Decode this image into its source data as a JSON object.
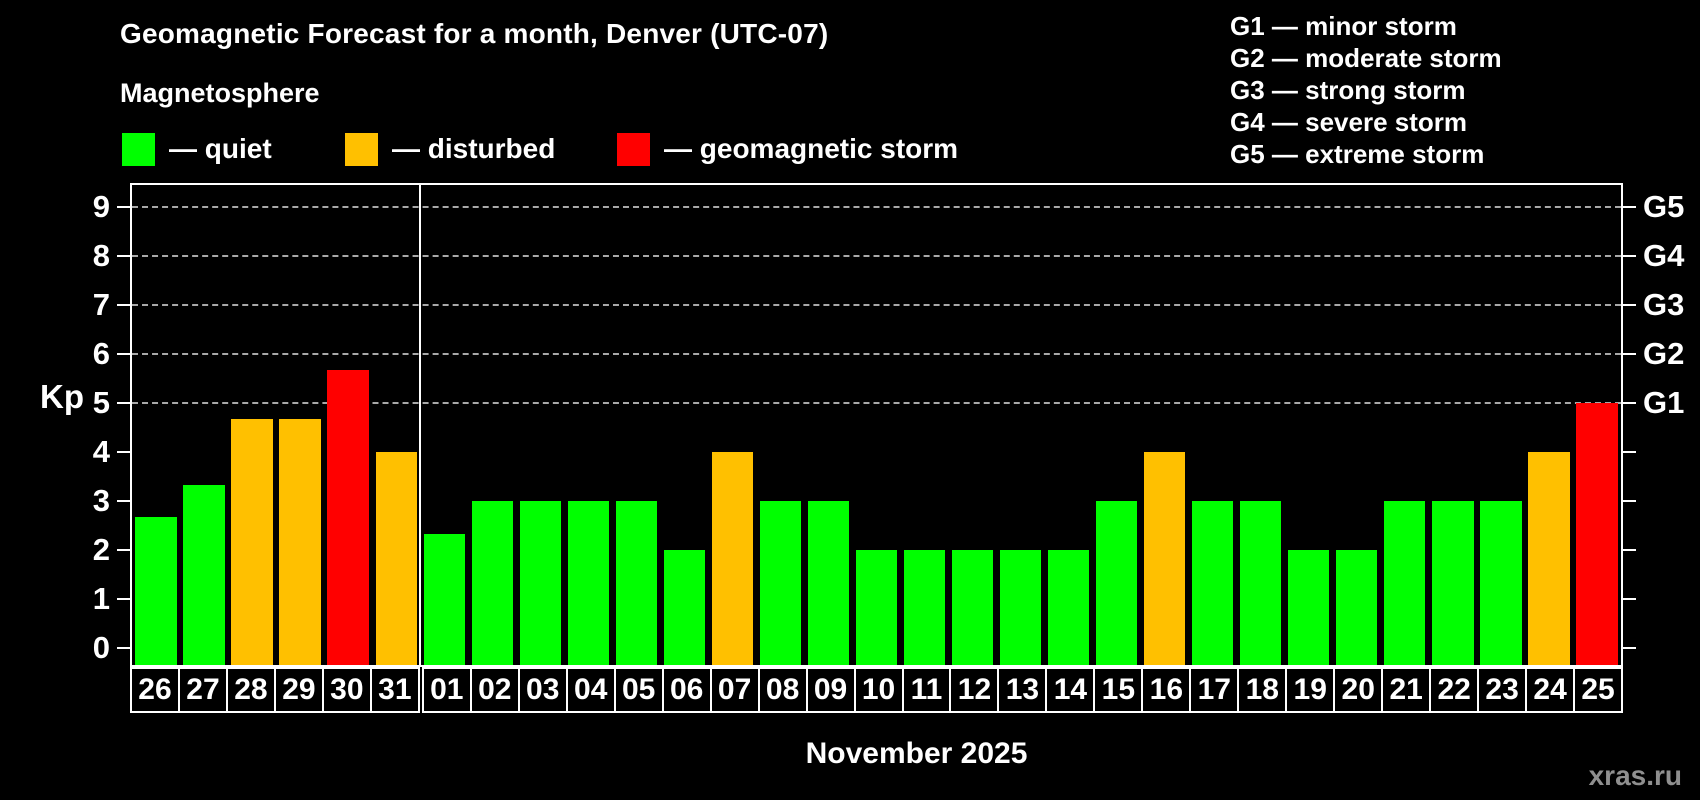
{
  "header": {
    "title": "Geomagnetic Forecast for a month, Denver (UTC-07)",
    "subtitle": "Magnetosphere"
  },
  "legend": {
    "items": [
      {
        "name": "quiet",
        "label": "— quiet",
        "color": "#00ff00"
      },
      {
        "name": "disturbed",
        "label": "— disturbed",
        "color": "#ffc000"
      },
      {
        "name": "storm",
        "label": "— geomagnetic storm",
        "color": "#ff0000"
      }
    ]
  },
  "g_legend": {
    "lines": [
      "G1 — minor storm",
      "G2 — moderate storm",
      "G3 — strong storm",
      "G4 — severe storm",
      "G5 — extreme storm"
    ]
  },
  "axes": {
    "kp_label": "Kp",
    "y_ticks": [
      0,
      1,
      2,
      3,
      4,
      5,
      6,
      7,
      8,
      9
    ],
    "right_labels": [
      {
        "text": "G1",
        "kp": 5
      },
      {
        "text": "G2",
        "kp": 6
      },
      {
        "text": "G3",
        "kp": 7
      },
      {
        "text": "G4",
        "kp": 8
      },
      {
        "text": "G5",
        "kp": 9
      }
    ]
  },
  "footer": {
    "month_label": "November 2025",
    "watermark": "xras.ru"
  },
  "colors": {
    "quiet": "#00ff00",
    "disturbed": "#ffc000",
    "storm": "#ff0000",
    "background": "#000000",
    "grid": "#a8a8a8",
    "frame": "#ffffff"
  },
  "chart_data": {
    "type": "bar",
    "title": "Geomagnetic Forecast for a month, Denver (UTC-07)",
    "xlabel": "November 2025",
    "ylabel": "Kp",
    "ylim": [
      0,
      9
    ],
    "grid": "dashed horizontal at Kp 5-9 (G1-G5)",
    "grid_levels": [
      5,
      6,
      7,
      8,
      9
    ],
    "legend_position": "top",
    "month_split_index": 6,
    "categories": [
      "26",
      "27",
      "28",
      "29",
      "30",
      "31",
      "01",
      "02",
      "03",
      "04",
      "05",
      "06",
      "07",
      "08",
      "09",
      "10",
      "11",
      "12",
      "13",
      "14",
      "15",
      "16",
      "17",
      "18",
      "19",
      "20",
      "21",
      "22",
      "23",
      "24",
      "25"
    ],
    "values": [
      2.67,
      3.33,
      4.67,
      4.67,
      5.67,
      4,
      2.33,
      3,
      3,
      3,
      3,
      2,
      4,
      3,
      3,
      2,
      2,
      2,
      2,
      2,
      3,
      4,
      3,
      3,
      2,
      2,
      3,
      3,
      3,
      4,
      5
    ],
    "statuses": [
      "quiet",
      "quiet",
      "disturbed",
      "disturbed",
      "storm",
      "disturbed",
      "quiet",
      "quiet",
      "quiet",
      "quiet",
      "quiet",
      "quiet",
      "disturbed",
      "quiet",
      "quiet",
      "quiet",
      "quiet",
      "quiet",
      "quiet",
      "quiet",
      "quiet",
      "disturbed",
      "quiet",
      "quiet",
      "quiet",
      "quiet",
      "quiet",
      "quiet",
      "quiet",
      "disturbed",
      "storm"
    ]
  }
}
